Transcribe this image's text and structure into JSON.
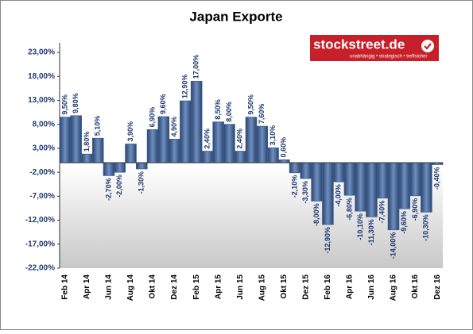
{
  "chart_data": {
    "type": "bar",
    "title": "Japan Exporte",
    "logo": {
      "name": "stockstreet.de",
      "tagline": "unabhängig • strategisch • treffsicher"
    },
    "categories": [
      "Feb 14",
      null,
      "Apr 14",
      null,
      "Jun 14",
      null,
      "Aug 14",
      null,
      "Okt 14",
      null,
      "Dez 14",
      null,
      "Feb 15",
      null,
      "Apr 15",
      null,
      "Jun 15",
      null,
      "Aug 15",
      null,
      "Okt 15",
      null,
      "Dez 15",
      null,
      "Feb 16",
      null,
      "Apr 16",
      null,
      "Jun 16",
      null,
      "Aug 16",
      null,
      "Okt 16",
      null,
      "Dez 16"
    ],
    "values": [
      9.5,
      9.8,
      1.8,
      5.1,
      -2.7,
      -2.0,
      3.9,
      -1.3,
      6.9,
      9.6,
      4.9,
      12.9,
      17.0,
      2.4,
      8.5,
      8.0,
      2.4,
      9.5,
      7.6,
      3.1,
      0.6,
      -2.1,
      -3.3,
      -8.0,
      -12.9,
      -4.0,
      -6.8,
      -10.1,
      -11.3,
      -7.4,
      -14.0,
      -9.6,
      -6.9,
      -10.3,
      -0.4
    ],
    "value_labels": [
      "9,50%",
      "9,80%",
      "1,80%",
      "5,10%",
      "-2,70%",
      "-2,00%",
      "3,90%",
      "-1,30%",
      "6,90%",
      "9,60%",
      "4,90%",
      "12,90%",
      "17,00%",
      "2,40%",
      "8,50%",
      "8,00%",
      "2,40%",
      "9,50%",
      "7,60%",
      "3,10%",
      "0,60%",
      "-2,10%",
      "-3,30%",
      "-8,00%",
      "-12,90%",
      "-4,00%",
      "-6,80%",
      "-10,10%",
      "-11,30%",
      "-7,40%",
      "-14,00%",
      "-9,60%",
      "-6,90%",
      "-10,30%",
      "-0,40%"
    ],
    "color": "#3f5f8f",
    "ylim": [
      -22,
      25
    ],
    "yticks": [
      {
        "value": -22,
        "label": "-22,00%"
      },
      {
        "value": -17,
        "label": "-17,00%"
      },
      {
        "value": -12,
        "label": "-12,00%"
      },
      {
        "value": -7,
        "label": "-7,00%"
      },
      {
        "value": -2,
        "label": "-2,00%"
      },
      {
        "value": 3,
        "label": "3,00%"
      },
      {
        "value": 8,
        "label": "8,00%"
      },
      {
        "value": 13,
        "label": "13,00%"
      },
      {
        "value": 18,
        "label": "18,00%"
      },
      {
        "value": 23,
        "label": "23,00%"
      }
    ],
    "grid": false
  }
}
